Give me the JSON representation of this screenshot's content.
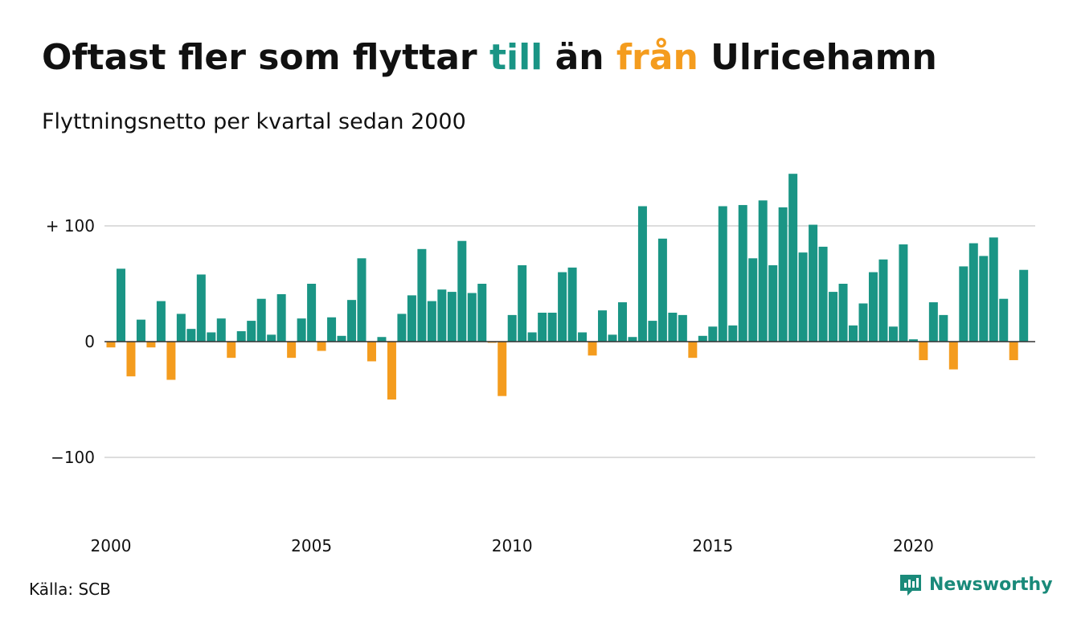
{
  "title": {
    "part1": "Oftast fler som flyttar",
    "part2": "till",
    "part3": "än",
    "part4": "från",
    "part5": "Ulricehamn"
  },
  "subtitle": "Flyttningsnetto per kvartal sedan 2000",
  "source": "Källa: SCB",
  "brand": "Newsworthy",
  "colors": {
    "positive": "#1a9585",
    "negative": "#f49c1e",
    "grid": "#dddddd",
    "text": "#111111"
  },
  "chart_data": {
    "type": "bar",
    "x_start": "2000 Q1",
    "frequency": "quarterly",
    "x_ticks": [
      "2000",
      "2005",
      "2010",
      "2015",
      "2020"
    ],
    "y_ticks": [
      {
        "value": 100,
        "label": "+ 100"
      },
      {
        "value": 0,
        "label": "0"
      },
      {
        "value": -100,
        "label": "−100"
      }
    ],
    "ylim": [
      -160,
      150
    ],
    "grid": true,
    "legend": "none",
    "values": [
      -5,
      63,
      -30,
      19,
      -5,
      35,
      -33,
      24,
      11,
      58,
      8,
      20,
      -14,
      9,
      18,
      37,
      6,
      41,
      -14,
      20,
      50,
      -8,
      21,
      5,
      36,
      72,
      -17,
      4,
      -50,
      24,
      40,
      80,
      35,
      45,
      43,
      87,
      42,
      50,
      -1,
      -47,
      23,
      66,
      8,
      25,
      25,
      60,
      64,
      8,
      -12,
      27,
      6,
      34,
      4,
      117,
      18,
      89,
      25,
      23,
      -14,
      5,
      13,
      117,
      14,
      118,
      72,
      122,
      66,
      116,
      145,
      77,
      101,
      82,
      43,
      50,
      14,
      33,
      60,
      71,
      13,
      84,
      2,
      -16,
      34,
      23,
      -24,
      65,
      85,
      74,
      90,
      37,
      -16,
      62
    ]
  }
}
